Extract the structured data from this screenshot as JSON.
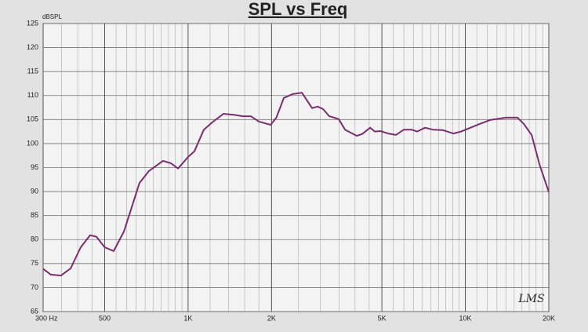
{
  "chart_data": {
    "type": "line",
    "title": "SPL vs Freq",
    "y_label": "dBSPL",
    "annotation": "LMS",
    "x": [
      300,
      320,
      348,
      377,
      410,
      443,
      467,
      500,
      539,
      587,
      668,
      723,
      812,
      867,
      920,
      1000,
      1054,
      1140,
      1233,
      1341,
      1461,
      1579,
      1685,
      1799,
      1983,
      2082,
      2214,
      2380,
      2574,
      2799,
      2932,
      3067,
      3231,
      3494,
      3681,
      4059,
      4249,
      4534,
      4715,
      4935,
      5266,
      5621,
      5999,
      6404,
      6703,
      7153,
      7633,
      8306,
      9042,
      9652,
      10435,
      11281,
      12279,
      13993,
      15420,
      16245,
      17342,
      18515,
      20000
    ],
    "values": [
      73.9,
      72.7,
      72.5,
      74.0,
      78.4,
      80.9,
      80.6,
      78.4,
      77.6,
      81.7,
      91.8,
      94.3,
      96.4,
      95.9,
      94.8,
      97.2,
      98.4,
      102.9,
      104.6,
      106.2,
      106.0,
      105.7,
      105.7,
      104.6,
      103.9,
      105.4,
      109.5,
      110.3,
      110.6,
      107.4,
      107.7,
      107.2,
      105.7,
      105.1,
      102.9,
      101.6,
      102.0,
      103.3,
      102.5,
      102.6,
      102.1,
      101.8,
      102.9,
      102.9,
      102.5,
      103.3,
      102.9,
      102.8,
      102.1,
      102.5,
      103.3,
      104.1,
      104.9,
      105.4,
      105.4,
      104.1,
      101.8,
      95.6,
      89.9
    ],
    "color": "#7b2d6e",
    "x_scale": "log",
    "xlim": [
      300,
      20000
    ],
    "ylim": [
      65,
      125
    ],
    "xticks": [
      {
        "value": 300,
        "label": "300 Hz"
      },
      500,
      {
        "value": 1000,
        "label": "1K"
      },
      {
        "value": 2000,
        "label": "2K"
      },
      {
        "value": 5000,
        "label": "5K"
      },
      {
        "value": 10000,
        "label": "10K"
      },
      {
        "value": 20000,
        "label": "20K"
      }
    ],
    "x_minor_grid": [
      350,
      400,
      450,
      550,
      600,
      650,
      700,
      750,
      800,
      850,
      900,
      950,
      1200,
      1400,
      1600,
      1800,
      2500,
      3000,
      3500,
      4000,
      4500,
      5500,
      6000,
      6500,
      7000,
      7500,
      8000,
      8500,
      9000,
      9500,
      11000,
      12000,
      13000,
      14000,
      15000,
      16000,
      17000,
      18000,
      19000
    ],
    "yticks": [
      65,
      70,
      75,
      80,
      85,
      90,
      95,
      100,
      105,
      110,
      115,
      120,
      125
    ],
    "grid": true
  }
}
